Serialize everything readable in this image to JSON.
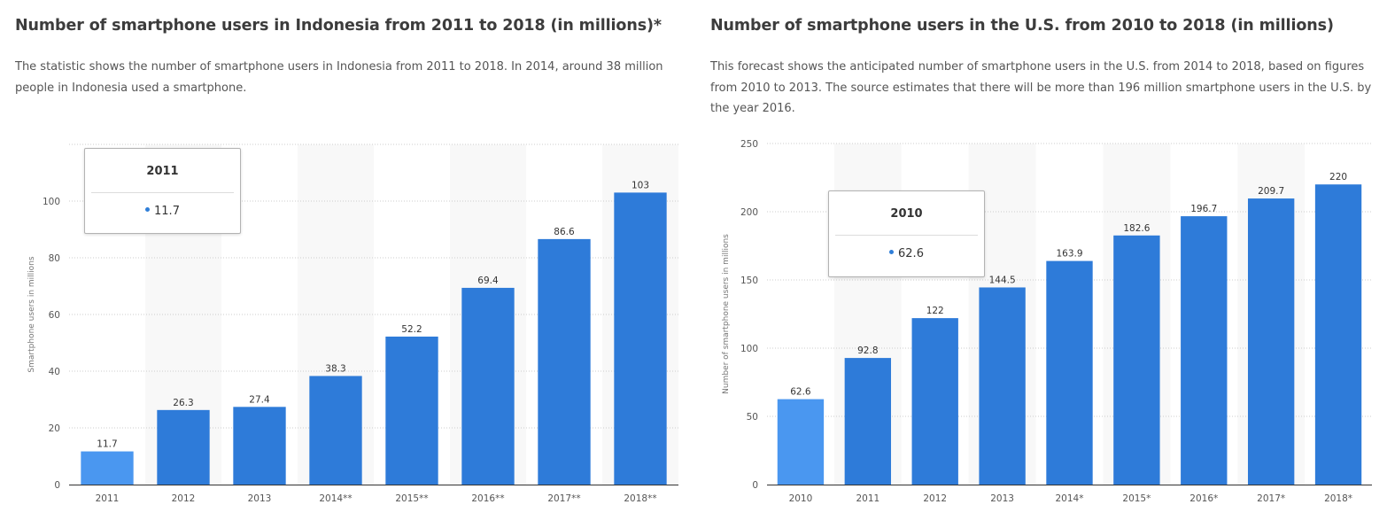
{
  "colors": {
    "bar": "#2e7bd9",
    "bar_highlight": "#4a97f0",
    "band": "#f8f8f8",
    "grid": "#cccccc",
    "axis": "#333333"
  },
  "chart_data": [
    {
      "type": "bar",
      "title": "Number of smartphone users in Indonesia from 2011 to 2018 (in millions)*",
      "description": "The statistic shows the number of smartphone users in Indonesia from 2011 to 2018. In 2014, around 38 million people in Indonesia used a smartphone.",
      "categories": [
        "2011",
        "2012",
        "2013",
        "2014**",
        "2015**",
        "2016**",
        "2017**",
        "2018**"
      ],
      "values": [
        11.7,
        26.3,
        27.4,
        38.3,
        52.2,
        69.4,
        86.6,
        103
      ],
      "value_labels": [
        "11.7",
        "26.3",
        "27.4",
        "38.3",
        "52.2",
        "69.4",
        "86.6",
        "103"
      ],
      "xlabel": "",
      "ylabel": "Smartphone users in millions",
      "ylim": [
        0,
        120
      ],
      "yticks": [
        0,
        20,
        40,
        60,
        80,
        100
      ],
      "ytick_labels": [
        "0",
        "20",
        "40",
        "60",
        "80",
        "100"
      ],
      "grid": true,
      "highlight_index": 0,
      "tooltip": {
        "header": "2011",
        "value": "11.7"
      }
    },
    {
      "type": "bar",
      "title": "Number of smartphone users in the U.S. from 2010 to 2018 (in millions)",
      "description": "This forecast shows the anticipated number of smartphone users in the U.S. from 2014 to 2018, based on figures from 2010 to 2013. The source estimates that there will be more than 196 million smartphone users in the U.S. by the year 2016.",
      "categories": [
        "2010",
        "2011",
        "2012",
        "2013",
        "2014*",
        "2015*",
        "2016*",
        "2017*",
        "2018*"
      ],
      "values": [
        62.6,
        92.8,
        122,
        144.5,
        163.9,
        182.6,
        196.7,
        209.7,
        220
      ],
      "value_labels": [
        "62.6",
        "92.8",
        "122",
        "144.5",
        "163.9",
        "182.6",
        "196.7",
        "209.7",
        "220"
      ],
      "xlabel": "",
      "ylabel": "Number of smartphone users in millions",
      "ylim": [
        0,
        250
      ],
      "yticks": [
        0,
        50,
        100,
        150,
        200,
        250
      ],
      "ytick_labels": [
        "0",
        "50",
        "100",
        "150",
        "200",
        "250"
      ],
      "grid": true,
      "highlight_index": 0,
      "tooltip": {
        "header": "2010",
        "value": "62.6"
      }
    }
  ]
}
